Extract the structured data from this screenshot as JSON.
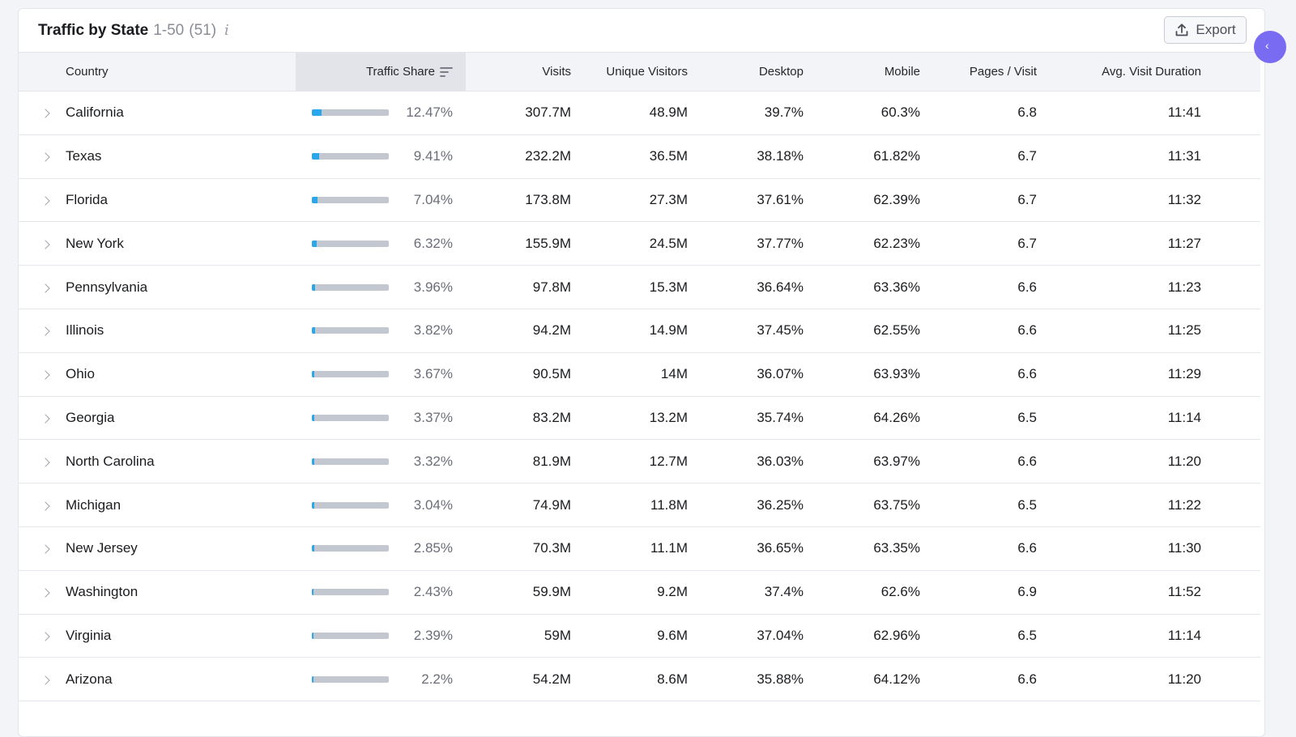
{
  "header": {
    "title": "Traffic by State",
    "range": "1-50",
    "count": "(51)",
    "info_icon": "info-icon",
    "export_label": "Export"
  },
  "colors": {
    "bar_fill": "#2aa7ea",
    "bar_track": "#c3c7d0",
    "bubble": "#7a6cf2"
  },
  "table": {
    "columns": {
      "country": "Country",
      "share": "Traffic Share",
      "visits": "Visits",
      "unique": "Unique Visitors",
      "desktop": "Desktop",
      "mobile": "Mobile",
      "pages": "Pages / Visit",
      "duration": "Avg. Visit Duration"
    },
    "rows": [
      {
        "state": "California",
        "share": "12.47%",
        "share_value": 12.47,
        "visits": "307.7M",
        "unique": "48.9M",
        "desktop": "39.7%",
        "mobile": "60.3%",
        "pages": "6.8",
        "duration": "11:41"
      },
      {
        "state": "Texas",
        "share": "9.41%",
        "share_value": 9.41,
        "visits": "232.2M",
        "unique": "36.5M",
        "desktop": "38.18%",
        "mobile": "61.82%",
        "pages": "6.7",
        "duration": "11:31"
      },
      {
        "state": "Florida",
        "share": "7.04%",
        "share_value": 7.04,
        "visits": "173.8M",
        "unique": "27.3M",
        "desktop": "37.61%",
        "mobile": "62.39%",
        "pages": "6.7",
        "duration": "11:32"
      },
      {
        "state": "New York",
        "share": "6.32%",
        "share_value": 6.32,
        "visits": "155.9M",
        "unique": "24.5M",
        "desktop": "37.77%",
        "mobile": "62.23%",
        "pages": "6.7",
        "duration": "11:27"
      },
      {
        "state": "Pennsylvania",
        "share": "3.96%",
        "share_value": 3.96,
        "visits": "97.8M",
        "unique": "15.3M",
        "desktop": "36.64%",
        "mobile": "63.36%",
        "pages": "6.6",
        "duration": "11:23"
      },
      {
        "state": "Illinois",
        "share": "3.82%",
        "share_value": 3.82,
        "visits": "94.2M",
        "unique": "14.9M",
        "desktop": "37.45%",
        "mobile": "62.55%",
        "pages": "6.6",
        "duration": "11:25"
      },
      {
        "state": "Ohio",
        "share": "3.67%",
        "share_value": 3.67,
        "visits": "90.5M",
        "unique": "14M",
        "desktop": "36.07%",
        "mobile": "63.93%",
        "pages": "6.6",
        "duration": "11:29"
      },
      {
        "state": "Georgia",
        "share": "3.37%",
        "share_value": 3.37,
        "visits": "83.2M",
        "unique": "13.2M",
        "desktop": "35.74%",
        "mobile": "64.26%",
        "pages": "6.5",
        "duration": "11:14"
      },
      {
        "state": "North Carolina",
        "share": "3.32%",
        "share_value": 3.32,
        "visits": "81.9M",
        "unique": "12.7M",
        "desktop": "36.03%",
        "mobile": "63.97%",
        "pages": "6.6",
        "duration": "11:20"
      },
      {
        "state": "Michigan",
        "share": "3.04%",
        "share_value": 3.04,
        "visits": "74.9M",
        "unique": "11.8M",
        "desktop": "36.25%",
        "mobile": "63.75%",
        "pages": "6.5",
        "duration": "11:22"
      },
      {
        "state": "New Jersey",
        "share": "2.85%",
        "share_value": 2.85,
        "visits": "70.3M",
        "unique": "11.1M",
        "desktop": "36.65%",
        "mobile": "63.35%",
        "pages": "6.6",
        "duration": "11:30"
      },
      {
        "state": "Washington",
        "share": "2.43%",
        "share_value": 2.43,
        "visits": "59.9M",
        "unique": "9.2M",
        "desktop": "37.4%",
        "mobile": "62.6%",
        "pages": "6.9",
        "duration": "11:52"
      },
      {
        "state": "Virginia",
        "share": "2.39%",
        "share_value": 2.39,
        "visits": "59M",
        "unique": "9.6M",
        "desktop": "37.04%",
        "mobile": "62.96%",
        "pages": "6.5",
        "duration": "11:14"
      },
      {
        "state": "Arizona",
        "share": "2.2%",
        "share_value": 2.2,
        "visits": "54.2M",
        "unique": "8.6M",
        "desktop": "35.88%",
        "mobile": "64.12%",
        "pages": "6.6",
        "duration": "11:20"
      }
    ]
  }
}
